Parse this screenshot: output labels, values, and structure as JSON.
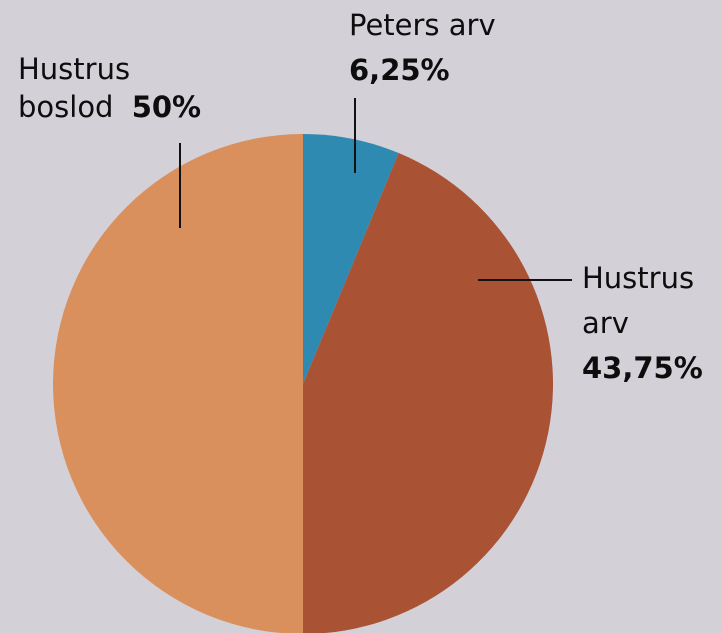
{
  "chart_data": {
    "type": "pie",
    "slices": [
      {
        "id": "peters-arv",
        "label_lines": [
          "Peters arv"
        ],
        "value_label": "6,25%",
        "value": 6.25,
        "color": "#2e8ab1"
      },
      {
        "id": "hustrus-arv",
        "label_lines": [
          "Hustrus",
          "arv"
        ],
        "value_label": "43,75%",
        "value": 43.75,
        "color": "#a95234"
      },
      {
        "id": "hustrus-boslod",
        "label_lines": [
          "Hustrus",
          "boslod"
        ],
        "value_label": "50%",
        "value": 50,
        "color": "#d9905d"
      }
    ],
    "start_angle_deg": 0,
    "direction": "clockwise",
    "legend": "none",
    "background_color": "#d4d0d8"
  }
}
